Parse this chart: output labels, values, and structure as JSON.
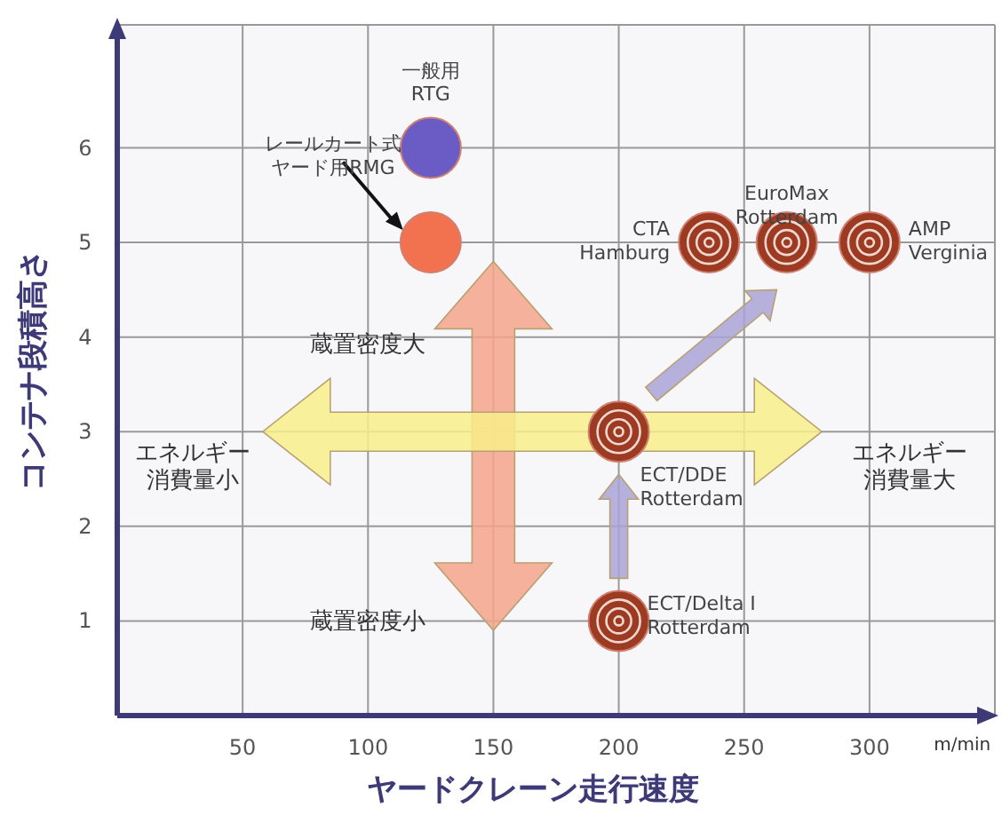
{
  "chart_data": {
    "type": "scatter",
    "xlabel": "ヤードクレーン走行速度",
    "ylabel": "コンテナ段積高さ",
    "xlim": [
      0,
      350
    ],
    "ylim": [
      0,
      7.3
    ],
    "xticks": [
      50,
      100,
      150,
      200,
      250,
      300
    ],
    "yticks": [
      1,
      2,
      3,
      4,
      5,
      6
    ],
    "grid": true,
    "marker": "circle",
    "series": [
      {
        "name": "一般用RTG",
        "color": "#6a5cc4",
        "x": [
          125
        ],
        "values": [
          6
        ]
      },
      {
        "name": "レールカート式ヤード用RMG",
        "color": "#f2714f",
        "x": [
          125
        ],
        "values": [
          5
        ]
      },
      {
        "name": "CTA\nHamburg",
        "color": "#9c3b22",
        "x": [
          236
        ],
        "values": [
          5
        ]
      },
      {
        "name": "EuroMax\nRotterdam",
        "color": "#9c3b22",
        "x": [
          267
        ],
        "values": [
          5
        ]
      },
      {
        "name": "AMP\nVerginia",
        "color": "#9c3b22",
        "x": [
          300
        ],
        "values": [
          5
        ]
      },
      {
        "name": "ECT/DDE\nRotterdam",
        "color": "#9c3b22",
        "x": [
          200
        ],
        "values": [
          3
        ]
      },
      {
        "name": "ECT/Delta I\nRotterdam",
        "color": "#9c3b22",
        "x": [
          200
        ],
        "values": [
          1
        ]
      }
    ],
    "annotations": [
      "蔵置密度大",
      "蔵置密度小",
      "エネルギー消費量小",
      "エネルギー消費量大",
      "m/min"
    ]
  }
}
